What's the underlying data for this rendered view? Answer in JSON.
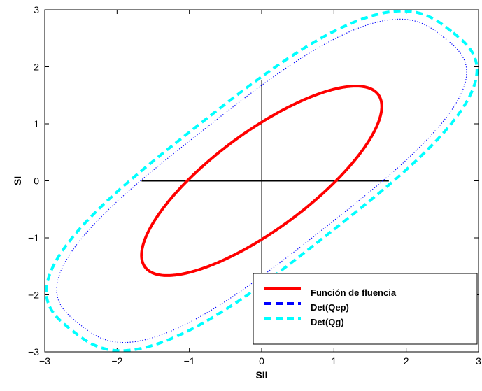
{
  "chart_data": {
    "type": "line",
    "xlabel": "SII",
    "ylabel": "SI",
    "xlim": [
      -3,
      3
    ],
    "ylim": [
      -3,
      3
    ],
    "xticks": [
      -3,
      -2,
      -1,
      0,
      1,
      2,
      3
    ],
    "yticks": [
      -3,
      -2,
      -1,
      0,
      1,
      2,
      3
    ],
    "xtick_labels": [
      "−3",
      "−2",
      "−1",
      "0",
      "1",
      "2",
      "3"
    ],
    "ytick_labels": [
      "−3",
      "−2",
      "−1",
      "0",
      "1",
      "2",
      "3"
    ],
    "grid": false,
    "legend_position": "bottom-right",
    "series": [
      {
        "name": "Función de fluencia",
        "color": "#ff0000",
        "style": "solid",
        "shape": "ellipse",
        "center": [
          0,
          0
        ],
        "rotation_deg": 45,
        "semi_axis_major": 2.22,
        "semi_axis_minor": 0.77
      },
      {
        "name": "Det(Qep)",
        "color": "#0000ff",
        "style": "dotted",
        "shape": "superellipse",
        "center": [
          0,
          0
        ],
        "rotation_deg": 45,
        "semi_axis_major": 3.56,
        "semi_axis_minor": 1.2,
        "exponent": 3
      },
      {
        "name": "Det(Qg)",
        "color": "#00ffff",
        "style": "dashed",
        "shape": "superellipse",
        "center": [
          0,
          0
        ],
        "rotation_deg": 45,
        "semi_axis_major": 3.71,
        "semi_axis_minor": 1.31,
        "exponent": 3
      }
    ],
    "reference_lines": [
      {
        "x": [
          -1.66,
          1.76
        ],
        "y": [
          0,
          0
        ],
        "color": "#000000"
      },
      {
        "x": [
          0,
          0
        ],
        "y": [
          -1.66,
          1.76
        ],
        "color": "#000000"
      }
    ]
  }
}
